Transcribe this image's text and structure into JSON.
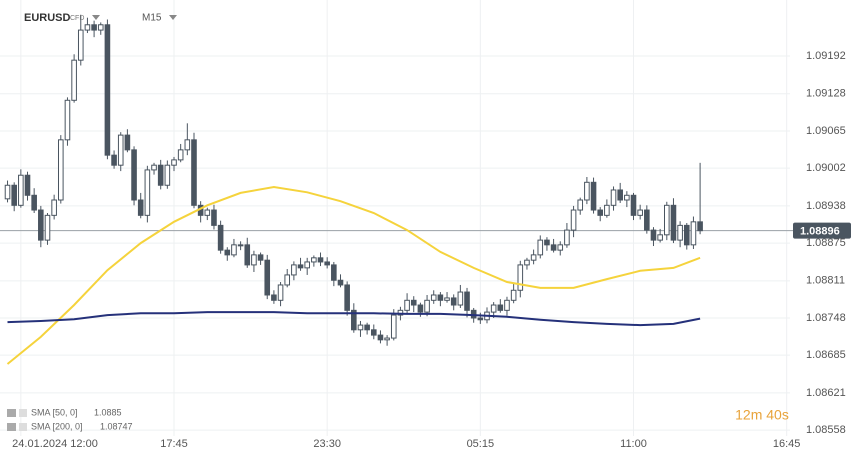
{
  "chart_data": {
    "type": "candlestick",
    "symbol": "EURUSD",
    "instrument_type": "CFD",
    "timeframe": "M15",
    "countdown": "12m 40s",
    "last_price": 1.08896,
    "up_color": "#ffffff",
    "down_color": "#4a5560",
    "outline_color": "#4a5560",
    "open": [
      1.0895,
      1.08973,
      1.08939,
      1.0899,
      1.08956,
      1.08931,
      1.0888,
      1.08922,
      1.08948,
      1.0905,
      1.09117,
      1.09185,
      1.09236,
      1.09245,
      1.09236,
      1.09245,
      1.09024,
      1.09007,
      1.09058,
      1.09033,
      1.08948,
      1.08922,
      1.08999,
      1.09007,
      1.08973,
      1.09007,
      1.09016,
      1.09033,
      1.0905,
      1.08939,
      1.08922,
      1.08931,
      1.08905,
      1.08863,
      1.08855,
      1.08872,
      1.08872,
      1.08838,
      1.08855,
      1.08846,
      1.08787,
      1.08778,
      1.08804,
      1.08821,
      1.08838,
      1.08833,
      1.08843,
      1.0885,
      1.08843,
      1.08838,
      1.08812,
      1.08804,
      1.08761,
      1.08728,
      1.08736,
      1.08728,
      1.08719,
      1.08711,
      1.08714,
      1.08753,
      1.08761,
      1.08778,
      1.0877,
      1.08758,
      1.08778,
      1.08787,
      1.08778,
      1.08782,
      1.0877,
      1.08792,
      1.08761,
      1.08748,
      1.08745,
      1.08758,
      1.0877,
      1.08761,
      1.08778,
      1.08795,
      1.08838,
      1.08846,
      1.08855,
      1.0888,
      1.08872,
      1.08863,
      1.08872,
      1.08897,
      1.08931,
      1.08948,
      1.08978,
      1.08931,
      1.08922,
      1.08939,
      1.08965,
      1.08948,
      1.08956,
      1.08922,
      1.08931,
      1.08897,
      1.0888,
      1.08889,
      1.08939,
      1.0888,
      1.08905,
      1.08872,
      1.08911
    ],
    "high": [
      1.08981,
      1.08978,
      1.09,
      1.08996,
      1.08968,
      1.08938,
      1.08926,
      1.08957,
      1.09058,
      1.09122,
      1.09195,
      1.09262,
      1.09257,
      1.09252,
      1.09249,
      1.09254,
      1.09032,
      1.09063,
      1.09068,
      1.09039,
      1.0896,
      1.09006,
      1.09011,
      1.09016,
      1.09015,
      1.09021,
      1.09043,
      1.09078,
      1.09062,
      1.08946,
      1.08935,
      1.0894,
      1.08913,
      1.08868,
      1.08882,
      1.08878,
      1.08884,
      1.08862,
      1.08859,
      1.08855,
      1.08795,
      1.08809,
      1.08831,
      1.08844,
      1.0885,
      1.0885,
      1.08854,
      1.08859,
      1.08851,
      1.08843,
      1.08822,
      1.0881,
      1.08773,
      1.08743,
      1.0874,
      1.08737,
      1.08727,
      1.08719,
      1.08763,
      1.08767,
      1.0879,
      1.08785,
      1.08774,
      1.08787,
      1.08795,
      1.08792,
      1.08792,
      1.08788,
      1.08804,
      1.08799,
      1.08765,
      1.08757,
      1.08766,
      1.08775,
      1.0878,
      1.08784,
      1.08807,
      1.08845,
      1.0885,
      1.08864,
      1.08888,
      1.08885,
      1.08882,
      1.08878,
      1.08909,
      1.08938,
      1.08952,
      1.08987,
      1.08986,
      1.08936,
      1.08949,
      1.08971,
      1.08977,
      1.08963,
      1.0896,
      1.0894,
      1.08939,
      1.08902,
      1.08899,
      1.08945,
      1.08951,
      1.08912,
      1.08909,
      1.0892,
      1.09011
    ],
    "low": [
      1.08944,
      1.08929,
      1.08935,
      1.08947,
      1.08926,
      1.08868,
      1.08872,
      1.08915,
      1.08942,
      1.0904,
      1.09113,
      1.09176,
      1.09231,
      1.09224,
      1.09228,
      1.09017,
      1.09001,
      1.08997,
      1.09029,
      1.08939,
      1.08917,
      1.0891,
      1.08991,
      1.08966,
      1.08967,
      1.08997,
      1.09012,
      1.09024,
      1.08934,
      1.0891,
      1.08914,
      1.08898,
      1.08857,
      1.08845,
      1.08851,
      1.08863,
      1.08833,
      1.08826,
      1.08838,
      1.0878,
      1.08772,
      1.08768,
      1.088,
      1.08812,
      1.08828,
      1.08821,
      1.08835,
      1.08836,
      1.08832,
      1.08802,
      1.088,
      1.08752,
      1.08723,
      1.08716,
      1.0872,
      1.08712,
      1.08705,
      1.08701,
      1.0871,
      1.08744,
      1.08756,
      1.08758,
      1.0875,
      1.08751,
      1.08772,
      1.08768,
      1.08774,
      1.08761,
      1.08765,
      1.08749,
      1.0874,
      1.08738,
      1.08739,
      1.08748,
      1.08757,
      1.08752,
      1.08773,
      1.08783,
      1.0883,
      1.08839,
      1.08849,
      1.08862,
      1.08859,
      1.08854,
      1.08867,
      1.08885,
      1.08923,
      1.08941,
      1.08925,
      1.08912,
      1.08918,
      1.0893,
      1.08943,
      1.08936,
      1.08914,
      1.08915,
      1.08891,
      1.0887,
      1.08876,
      1.0888,
      1.08875,
      1.08868,
      1.08864,
      1.08865,
      1.0889
    ],
    "close": [
      1.08973,
      1.08939,
      1.0899,
      1.08956,
      1.08931,
      1.0888,
      1.08922,
      1.08948,
      1.0905,
      1.09117,
      1.09185,
      1.09236,
      1.09245,
      1.09236,
      1.09245,
      1.09024,
      1.09007,
      1.09058,
      1.09033,
      1.08948,
      1.08922,
      1.08999,
      1.09007,
      1.08973,
      1.09007,
      1.09016,
      1.09033,
      1.0905,
      1.08939,
      1.08922,
      1.08931,
      1.08905,
      1.08863,
      1.08855,
      1.08872,
      1.08872,
      1.08838,
      1.08855,
      1.08846,
      1.08787,
      1.08778,
      1.08804,
      1.08821,
      1.08838,
      1.08833,
      1.08843,
      1.0885,
      1.08843,
      1.08838,
      1.08812,
      1.08804,
      1.08761,
      1.08728,
      1.08736,
      1.08728,
      1.08719,
      1.08711,
      1.08714,
      1.08753,
      1.08761,
      1.08778,
      1.0877,
      1.08758,
      1.08778,
      1.08787,
      1.08778,
      1.08782,
      1.0877,
      1.08792,
      1.08761,
      1.08748,
      1.08745,
      1.08758,
      1.0877,
      1.08761,
      1.08778,
      1.08795,
      1.08838,
      1.08846,
      1.08855,
      1.0888,
      1.08872,
      1.08863,
      1.08872,
      1.08897,
      1.08931,
      1.08948,
      1.08978,
      1.08931,
      1.08922,
      1.08939,
      1.08965,
      1.08948,
      1.08956,
      1.08922,
      1.08931,
      1.08897,
      1.0888,
      1.08889,
      1.08939,
      1.0888,
      1.08905,
      1.08872,
      1.08911,
      1.08896
    ],
    "series": [
      {
        "name": "SMA [50, 0]",
        "legend_value": 1.0885,
        "color": "#f5d33c",
        "x": [
          0,
          5,
          10,
          15,
          20,
          25,
          30,
          35,
          40,
          45,
          50,
          55,
          60,
          65,
          70,
          75,
          80,
          85,
          90,
          95,
          100,
          104
        ],
        "values": [
          1.0867,
          1.08716,
          1.0877,
          1.08829,
          1.08875,
          1.08911,
          1.08939,
          1.0896,
          1.0897,
          1.08961,
          1.08946,
          1.08926,
          1.08897,
          1.0886,
          1.08833,
          1.08809,
          1.08799,
          1.08799,
          1.08814,
          1.08828,
          1.08833,
          1.0885
        ]
      },
      {
        "name": "SMA [200, 0]",
        "legend_value": 1.08747,
        "color": "#25317a",
        "x": [
          0,
          5,
          10,
          15,
          20,
          25,
          30,
          35,
          40,
          45,
          50,
          55,
          60,
          65,
          70,
          75,
          80,
          85,
          90,
          95,
          100,
          104
        ],
        "values": [
          1.08741,
          1.08743,
          1.08746,
          1.08753,
          1.08756,
          1.08756,
          1.08758,
          1.08758,
          1.08758,
          1.08756,
          1.08756,
          1.08756,
          1.08755,
          1.08755,
          1.08753,
          1.0875,
          1.08745,
          1.08741,
          1.08738,
          1.08736,
          1.08738,
          1.08747
        ]
      }
    ],
    "xlim": [
      -1.13,
      117.5
    ],
    "xticks": [
      {
        "value": 2,
        "label": "24.01.2024  12:00"
      },
      {
        "value": 25,
        "label": "17:45"
      },
      {
        "value": 48,
        "label": "23:30"
      },
      {
        "value": 71,
        "label": "05:15"
      },
      {
        "value": 94,
        "label": "11:00"
      },
      {
        "value": 117,
        "label": "16:45"
      }
    ],
    "ylim": [
      1.08548,
      1.09287
    ],
    "yticks": [
      1.08558,
      1.08621,
      1.08685,
      1.08748,
      1.08811,
      1.08875,
      1.08938,
      1.09002,
      1.09065,
      1.09128,
      1.09192
    ],
    "grid": true
  }
}
